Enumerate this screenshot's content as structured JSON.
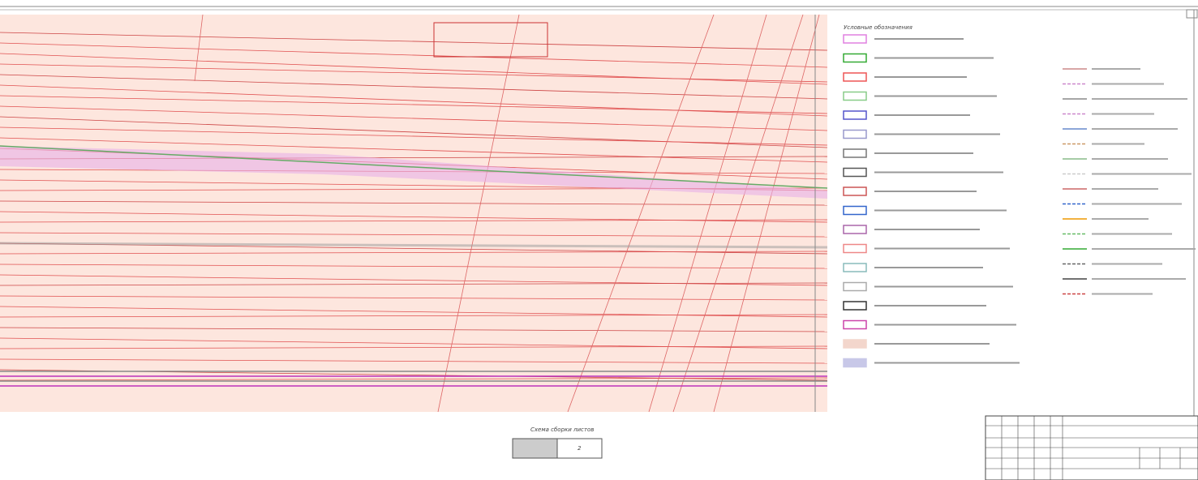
{
  "legend": {
    "title": "Условные обозначения"
  },
  "sheet_scheme": {
    "title": "Схема сборки листов",
    "sheet": "2"
  }
}
